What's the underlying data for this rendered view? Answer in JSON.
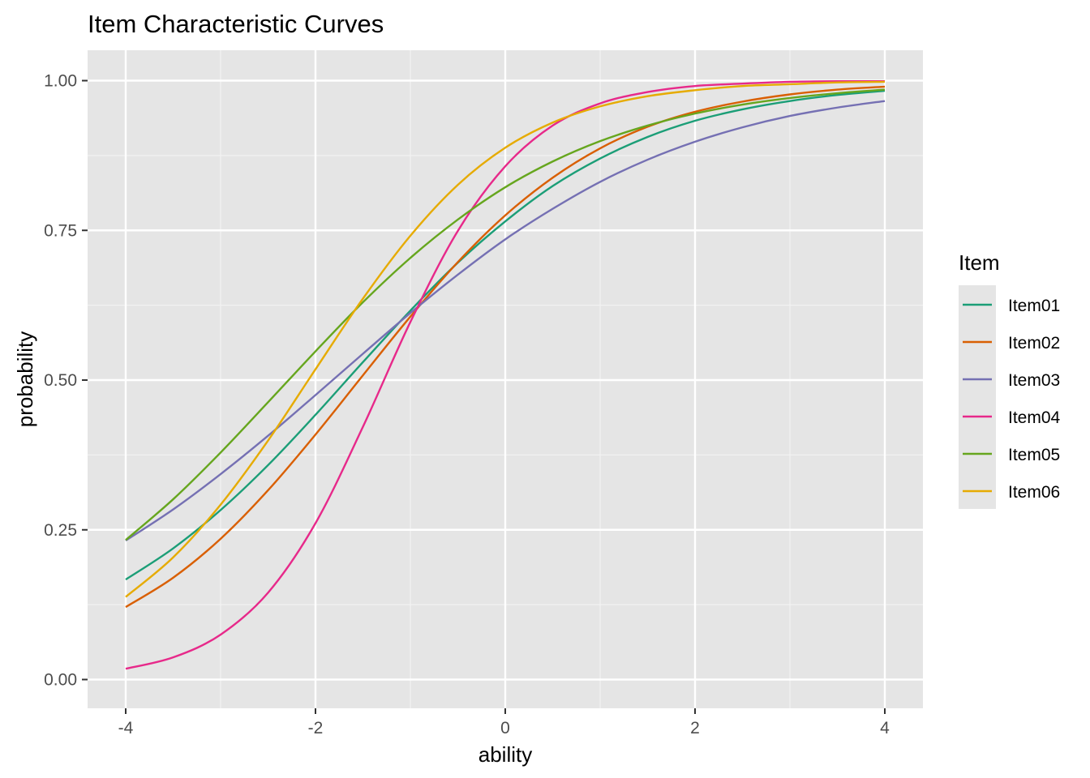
{
  "chart_data": {
    "type": "line",
    "title": "Item Characteristic Curves",
    "xlabel": "ability",
    "ylabel": "probability",
    "xlim": [
      -4,
      4
    ],
    "ylim": [
      0,
      1
    ],
    "x_ticks": [
      "-4",
      "-2",
      "0",
      "2",
      "4"
    ],
    "y_ticks": [
      "0.00",
      "0.25",
      "0.50",
      "0.75",
      "1.00"
    ],
    "grid": true,
    "legend": {
      "title": "Item",
      "position": "right"
    },
    "x": [
      -4,
      -3.5,
      -3,
      -2.5,
      -2,
      -1.5,
      -1,
      -0.5,
      0,
      0.5,
      1,
      1.5,
      2,
      2.5,
      3,
      3.5,
      4
    ],
    "series": [
      {
        "name": "Item01",
        "color": "#1B9E77",
        "values": [
          0.167,
          0.219,
          0.283,
          0.358,
          0.442,
          0.53,
          0.616,
          0.696,
          0.765,
          0.824,
          0.87,
          0.906,
          0.933,
          0.952,
          0.966,
          0.976,
          0.983
        ]
      },
      {
        "name": "Item02",
        "color": "#D95F02",
        "values": [
          0.121,
          0.17,
          0.235,
          0.316,
          0.409,
          0.508,
          0.606,
          0.697,
          0.775,
          0.838,
          0.887,
          0.923,
          0.948,
          0.965,
          0.977,
          0.985,
          0.99
        ]
      },
      {
        "name": "Item03",
        "color": "#7570B3",
        "values": [
          0.232,
          0.284,
          0.343,
          0.407,
          0.475,
          0.544,
          0.612,
          0.676,
          0.735,
          0.786,
          0.831,
          0.868,
          0.898,
          0.922,
          0.941,
          0.955,
          0.966
        ]
      },
      {
        "name": "Item04",
        "color": "#E7298A",
        "values": [
          0.018,
          0.037,
          0.075,
          0.145,
          0.261,
          0.422,
          0.597,
          0.749,
          0.857,
          0.925,
          0.962,
          0.981,
          0.991,
          0.995,
          0.998,
          0.999,
          0.999
        ]
      },
      {
        "name": "Item05",
        "color": "#66A61E",
        "values": [
          0.233,
          0.301,
          0.379,
          0.463,
          0.548,
          0.63,
          0.704,
          0.768,
          0.822,
          0.865,
          0.899,
          0.925,
          0.945,
          0.96,
          0.971,
          0.979,
          0.985
        ]
      },
      {
        "name": "Item06",
        "color": "#E6AB02",
        "values": [
          0.138,
          0.204,
          0.292,
          0.399,
          0.518,
          0.636,
          0.741,
          0.826,
          0.888,
          0.93,
          0.957,
          0.974,
          0.984,
          0.991,
          0.994,
          0.997,
          0.998
        ]
      }
    ]
  }
}
